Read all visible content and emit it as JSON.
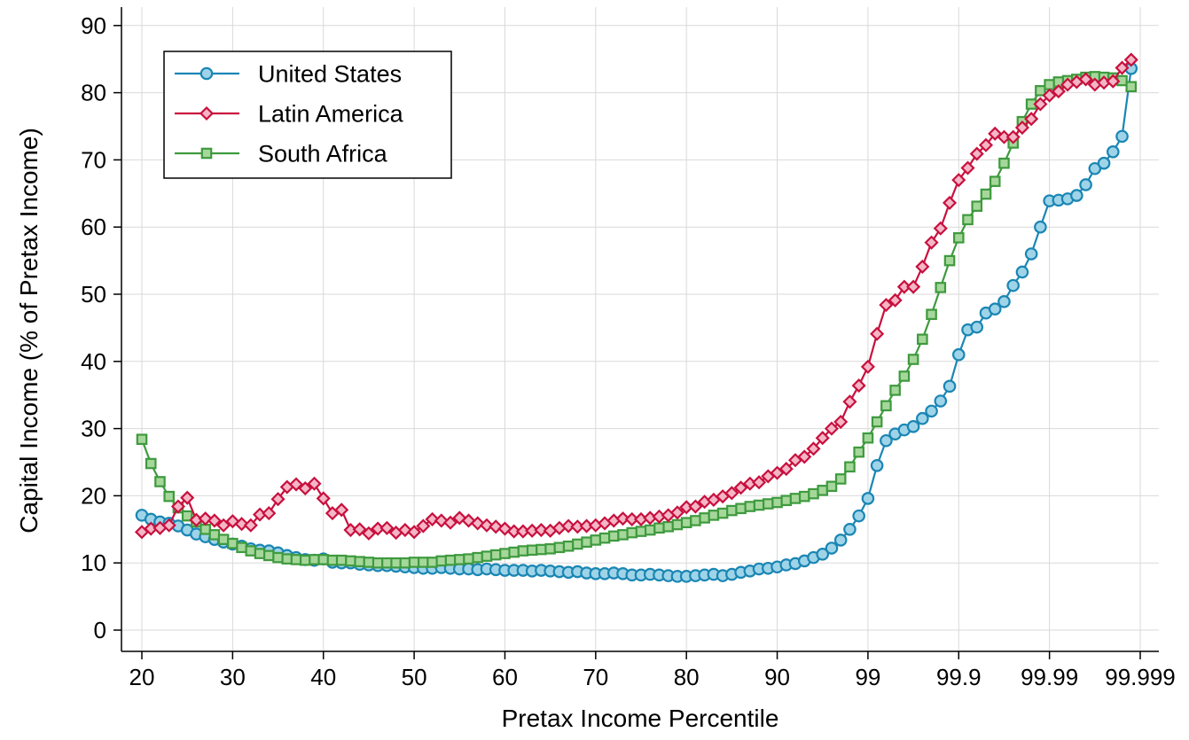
{
  "chart_data": {
    "type": "line",
    "title": "",
    "xlabel": "Pretax Income Percentile",
    "ylabel": "Capital Income (% of Pretax Income)",
    "ylim": [
      0,
      90
    ],
    "y_ticks": [
      0,
      10,
      20,
      30,
      40,
      50,
      60,
      70,
      80,
      90
    ],
    "x_tick_labels": [
      "20",
      "30",
      "40",
      "50",
      "60",
      "70",
      "80",
      "90",
      "99",
      "99.9",
      "99.99",
      "99.999"
    ],
    "x_scale": "percentile (linear 20-99, then each top decile of the remaining share expanded: 99, 99.9, 99.99, 99.999)",
    "grid": true,
    "legend_position": "top-left",
    "series": [
      {
        "name": "United States",
        "color": "#1a86b4",
        "fill": "#9fd4e8",
        "marker": "circle",
        "values": [
          17.1,
          16.5,
          16.1,
          15.9,
          15.5,
          14.9,
          14.3,
          13.9,
          13.5,
          13.1,
          12.8,
          12.5,
          12.1,
          11.9,
          11.8,
          11.5,
          11.1,
          10.8,
          10.5,
          10.4,
          10.6,
          10.1,
          10.0,
          10.0,
          9.8,
          9.7,
          9.6,
          9.6,
          9.5,
          9.4,
          9.3,
          9.2,
          9.2,
          9.3,
          9.2,
          9.1,
          9.1,
          9.0,
          9.1,
          9.0,
          8.9,
          8.9,
          8.9,
          8.8,
          8.9,
          8.8,
          8.7,
          8.6,
          8.7,
          8.5,
          8.4,
          8.4,
          8.5,
          8.4,
          8.2,
          8.2,
          8.3,
          8.2,
          8.1,
          8.0,
          8.0,
          8.1,
          8.2,
          8.3,
          8.1,
          8.3,
          8.6,
          8.8,
          9.1,
          9.2,
          9.4,
          9.7,
          9.9,
          10.3,
          10.8,
          11.3,
          12.2,
          13.4,
          15.0,
          17.0,
          19.6,
          24.5,
          28.2,
          29.2,
          29.8,
          30.3,
          31.5,
          32.6,
          34.1,
          36.3,
          41.0,
          44.7,
          45.1,
          47.2,
          47.8,
          48.9,
          51.3,
          53.3,
          56.0,
          60.0,
          63.9,
          64.0,
          64.2,
          64.7,
          66.3,
          68.7,
          69.5,
          71.2,
          73.5,
          83.6
        ]
      },
      {
        "name": "Latin America",
        "color": "#c8103e",
        "fill": "#f4b6c6",
        "marker": "diamond",
        "values": [
          14.6,
          15.1,
          15.2,
          15.6,
          18.4,
          19.7,
          16.4,
          16.6,
          16.3,
          15.6,
          16.2,
          15.8,
          15.6,
          17.2,
          17.4,
          19.5,
          21.3,
          21.7,
          21.1,
          21.8,
          19.6,
          17.4,
          17.9,
          14.9,
          15.0,
          14.4,
          15.1,
          15.2,
          14.5,
          14.9,
          14.6,
          15.5,
          16.5,
          16.3,
          16.0,
          16.7,
          16.3,
          15.9,
          15.6,
          15.4,
          15.1,
          14.7,
          14.7,
          14.8,
          14.9,
          14.8,
          15.2,
          15.5,
          15.4,
          15.5,
          15.6,
          15.9,
          16.3,
          16.6,
          16.5,
          16.5,
          16.7,
          16.9,
          17.1,
          17.5,
          18.3,
          18.4,
          19.1,
          19.4,
          19.9,
          20.4,
          21.2,
          21.8,
          22.0,
          22.9,
          23.4,
          24.0,
          25.3,
          25.8,
          27.0,
          28.6,
          30.0,
          31.0,
          34.0,
          36.4,
          39.2,
          44.1,
          48.4,
          49.1,
          51.1,
          51.1,
          54.1,
          57.7,
          59.8,
          63.6,
          67.0,
          68.8,
          70.9,
          72.2,
          73.9,
          73.4,
          73.4,
          74.8,
          76.1,
          78.3,
          79.6,
          80.2,
          81.2,
          81.6,
          82.0,
          81.2,
          81.5,
          81.7,
          83.7,
          84.9
        ]
      },
      {
        "name": "South Africa",
        "color": "#3e9a3e",
        "fill": "#a6d79a",
        "marker": "square",
        "values": [
          28.4,
          24.8,
          22.1,
          19.9,
          18.2,
          17.0,
          16.1,
          15.0,
          14.2,
          13.5,
          12.9,
          12.3,
          11.8,
          11.4,
          11.1,
          10.8,
          10.6,
          10.5,
          10.4,
          10.5,
          10.5,
          10.4,
          10.4,
          10.3,
          10.2,
          10.1,
          10.0,
          10.0,
          10.0,
          10.0,
          10.1,
          10.1,
          10.1,
          10.3,
          10.4,
          10.5,
          10.6,
          10.8,
          11.0,
          11.2,
          11.4,
          11.6,
          11.8,
          11.9,
          12.0,
          12.1,
          12.3,
          12.5,
          12.8,
          13.1,
          13.4,
          13.7,
          14.0,
          14.2,
          14.5,
          14.7,
          14.9,
          15.2,
          15.4,
          15.7,
          16.0,
          16.3,
          16.7,
          17.1,
          17.4,
          17.8,
          18.1,
          18.4,
          18.6,
          18.8,
          19.0,
          19.3,
          19.6,
          19.9,
          20.3,
          20.8,
          21.4,
          22.5,
          24.3,
          26.5,
          28.6,
          31.0,
          33.4,
          35.7,
          37.8,
          40.3,
          43.3,
          47.0,
          51.0,
          55.0,
          58.4,
          61.1,
          63.1,
          64.9,
          66.8,
          69.5,
          72.5,
          75.7,
          78.3,
          80.3,
          81.2,
          81.6,
          81.8,
          82.0,
          82.3,
          82.4,
          82.3,
          82.2,
          81.8,
          80.9
        ]
      }
    ]
  }
}
